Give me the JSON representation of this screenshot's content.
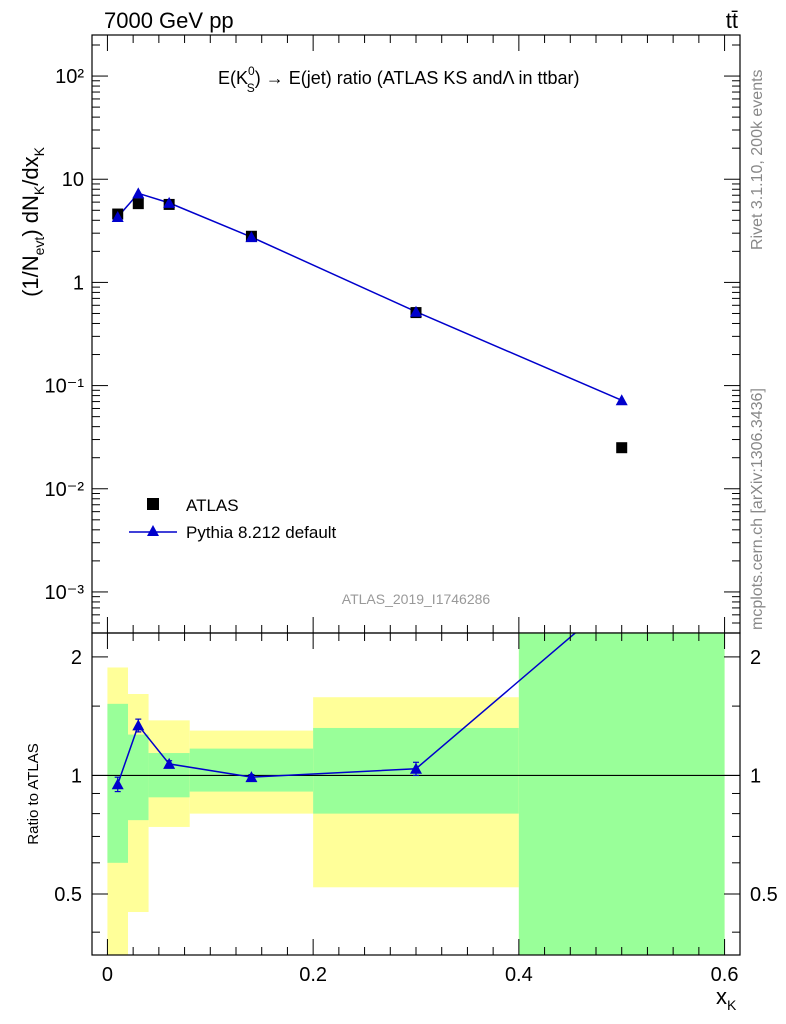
{
  "header": {
    "energy_label": "7000 GeV pp",
    "process_label": "tt̄",
    "side_label_top": "Rivet 3.1.10,  200k events",
    "side_label_bottom": "mcplots.cern.ch [arXiv:1306.3436]",
    "analysis_id": "ATLAS_2019_I1746286"
  },
  "chart_data": [
    {
      "type": "scatter",
      "panel": "main",
      "title": "E(K₀ˢ) → E(jet) ratio (ATLAS KS andΛ in ttbar)",
      "title_parts": {
        "pre": "E(K",
        "sup": "0",
        "sub": "S",
        "post": ") → E(jet) ratio (ATLAS KS andΛ in ttbar)"
      },
      "ylabel": "(1/N_evt) dN_K/dx_K",
      "ylabel_parts": {
        "a": "(1/N",
        "sub1": "evt",
        "b": ") dN",
        "sub2": "K",
        "c": "/dx",
        "sub3": "K"
      },
      "xlim": [
        -0.015,
        0.615
      ],
      "ylim": [
        0.0004,
        250
      ],
      "log_y": true,
      "y_ticks": [
        "10⁻³",
        "10⁻²",
        "10⁻¹",
        "1",
        "10",
        "10²"
      ],
      "legend_position": "left-lower",
      "series": [
        {
          "name": "ATLAS",
          "marker": "square",
          "color": "#000000",
          "x": [
            0.01,
            0.03,
            0.06,
            0.14,
            0.3,
            0.5
          ],
          "y": [
            4.6,
            5.8,
            5.7,
            2.8,
            0.51,
            0.025
          ]
        },
        {
          "name": "Pythia 8.212 default",
          "marker": "triangle",
          "color": "#0000cc",
          "x": [
            0.01,
            0.03,
            0.06,
            0.14,
            0.3,
            0.5
          ],
          "y": [
            4.3,
            7.3,
            5.9,
            2.75,
            0.52,
            0.072
          ]
        }
      ]
    },
    {
      "type": "line",
      "panel": "ratio",
      "ylabel": "Ratio to ATLAS",
      "xlabel": "x_K",
      "xlabel_parts": {
        "a": "x",
        "sub": "K"
      },
      "xlim": [
        -0.015,
        0.615
      ],
      "ylim": [
        0.35,
        2.3
      ],
      "x_ticks": [
        "0",
        "0.2",
        "0.4",
        "0.6"
      ],
      "y_ticks": [
        "0.5",
        "1",
        "2"
      ],
      "bands": [
        {
          "x0": 0.0,
          "x1": 0.02,
          "yellow": [
            0.32,
            1.88
          ],
          "green": [
            0.6,
            1.52
          ]
        },
        {
          "x0": 0.02,
          "x1": 0.04,
          "yellow": [
            0.45,
            1.61
          ],
          "green": [
            0.77,
            1.27
          ]
        },
        {
          "x0": 0.04,
          "x1": 0.08,
          "yellow": [
            0.74,
            1.38
          ],
          "green": [
            0.88,
            1.14
          ]
        },
        {
          "x0": 0.08,
          "x1": 0.2,
          "yellow": [
            0.8,
            1.3
          ],
          "green": [
            0.91,
            1.17
          ]
        },
        {
          "x0": 0.2,
          "x1": 0.4,
          "yellow": [
            0.52,
            1.58
          ],
          "green": [
            0.8,
            1.32
          ]
        },
        {
          "x0": 0.4,
          "x1": 0.6,
          "yellow": [
            0.3,
            2.5
          ],
          "green": [
            0.3,
            2.5
          ]
        }
      ],
      "series": [
        {
          "name": "Pythia 8.212 default",
          "color": "#0000cc",
          "x": [
            0.01,
            0.03,
            0.06,
            0.14,
            0.3,
            0.5
          ],
          "y": [
            0.95,
            1.34,
            1.07,
            0.99,
            1.04,
            2.9
          ],
          "err": [
            0.04,
            0.05,
            0.02,
            0.015,
            0.04,
            0.0
          ]
        }
      ]
    }
  ]
}
